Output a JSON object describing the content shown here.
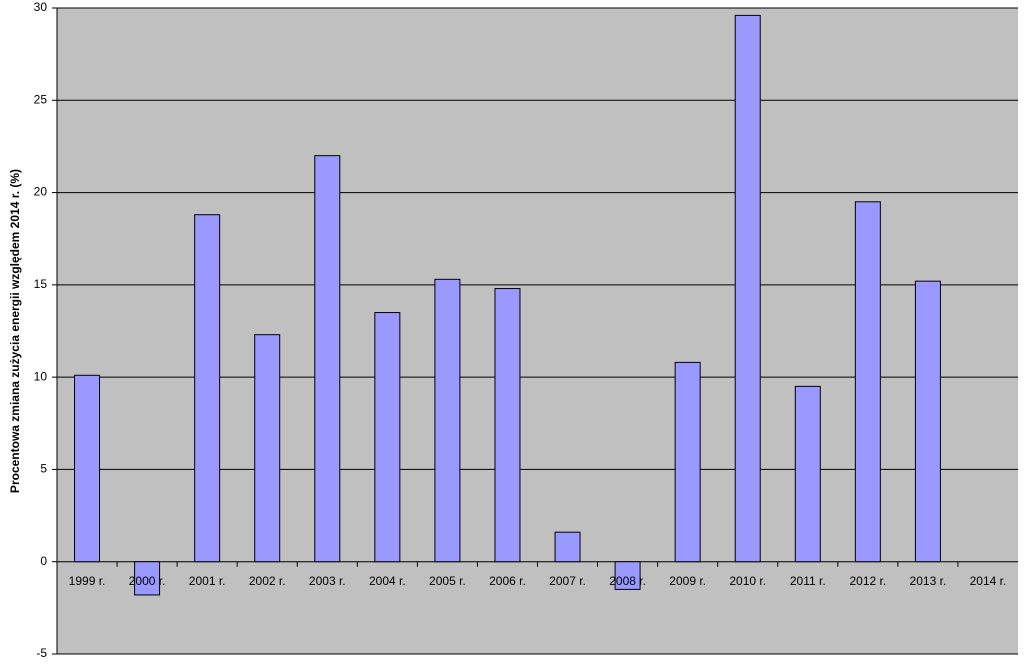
{
  "chart_data": {
    "type": "bar",
    "y_label": "Procentowa zmiana zużycia energii względem 2014 r. (%)",
    "categories": [
      "1999 r.",
      "2000 r.",
      "2001 r.",
      "2002 r.",
      "2003 r.",
      "2004 r.",
      "2005 r.",
      "2006 r.",
      "2007 r.",
      "2008 r.",
      "2009 r.",
      "2010 r.",
      "2011 r.",
      "2012 r.",
      "2013 r.",
      "2014 r."
    ],
    "values": [
      10.1,
      -1.8,
      18.8,
      12.3,
      22.0,
      13.5,
      15.3,
      14.8,
      1.6,
      -1.5,
      10.8,
      29.6,
      9.5,
      19.5,
      15.2,
      0
    ],
    "color": "#9999ff",
    "ylim": [
      -5,
      30
    ],
    "yticks": [
      -5,
      0,
      5,
      10,
      15,
      20,
      25,
      30
    ],
    "grid": true
  }
}
